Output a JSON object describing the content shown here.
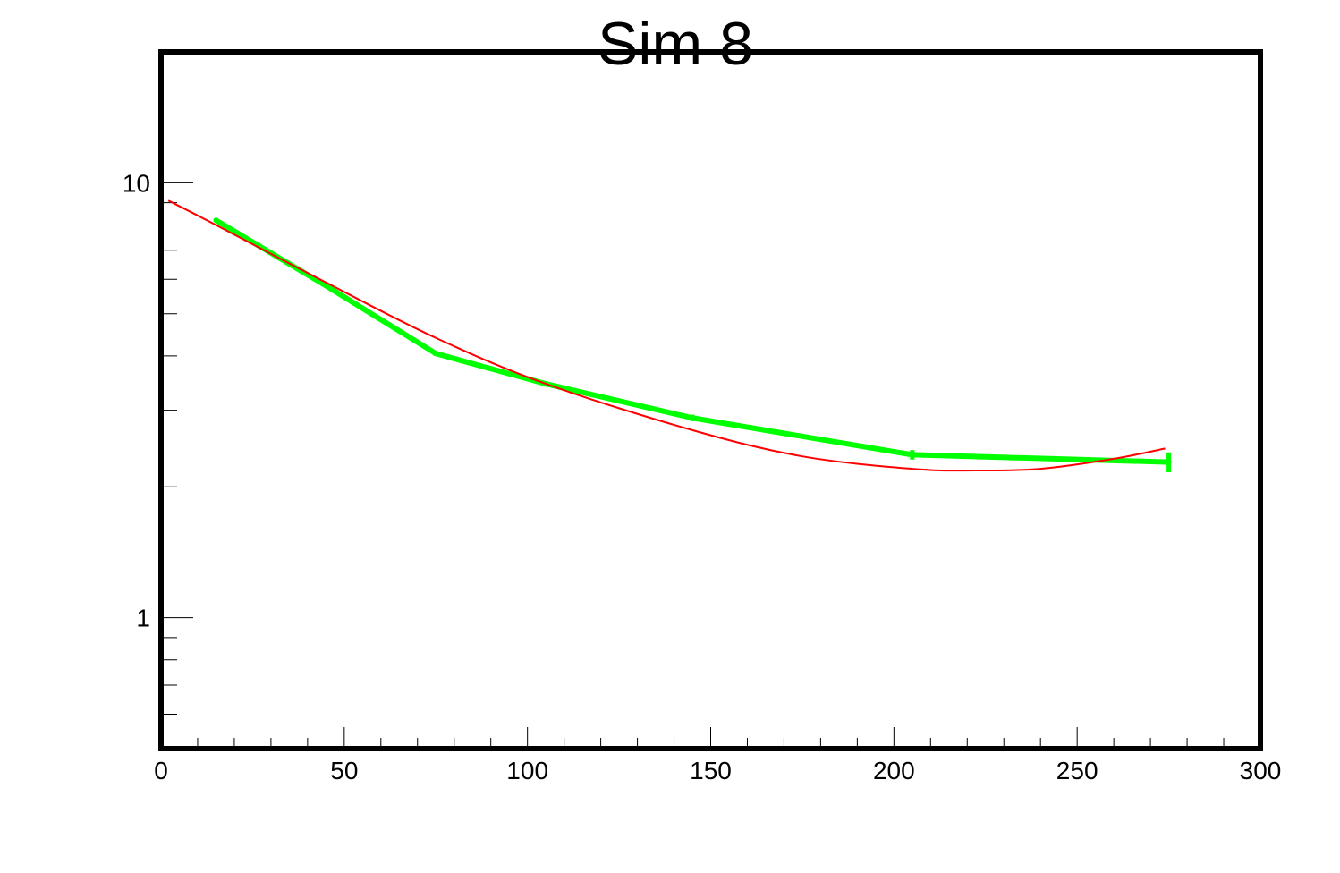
{
  "chart_data": {
    "type": "line",
    "title": "Sim 8",
    "xlabel": "",
    "ylabel": "",
    "xlim": [
      0,
      300
    ],
    "ylim": [
      0.5,
      20
    ],
    "yscale": "log",
    "grid": false,
    "x_major_ticks": [
      0,
      50,
      100,
      150,
      200,
      250,
      300
    ],
    "x_tick_labels": [
      "0",
      "50",
      "100",
      "150",
      "200",
      "250",
      "300"
    ],
    "y_major_ticks": [
      1,
      10
    ],
    "y_tick_labels": [
      "1",
      "10"
    ],
    "series": [
      {
        "kind": "data-with-errors",
        "color": "#00ff00",
        "x": [
          15,
          45,
          75,
          105,
          145,
          205,
          275
        ],
        "y": [
          8.2,
          5.8,
          4.05,
          3.45,
          2.88,
          2.37,
          2.28
        ],
        "yerr": [
          0.08,
          0.06,
          0.05,
          0.05,
          0.05,
          0.06,
          0.12
        ]
      },
      {
        "kind": "fit-curve",
        "color": "#ff0000",
        "x": [
          2,
          15,
          45,
          75,
          105,
          145,
          175,
          205,
          222,
          240,
          260,
          274
        ],
        "y": [
          9.1,
          8.0,
          5.9,
          4.4,
          3.45,
          2.7,
          2.35,
          2.2,
          2.18,
          2.2,
          2.32,
          2.45
        ]
      }
    ]
  }
}
